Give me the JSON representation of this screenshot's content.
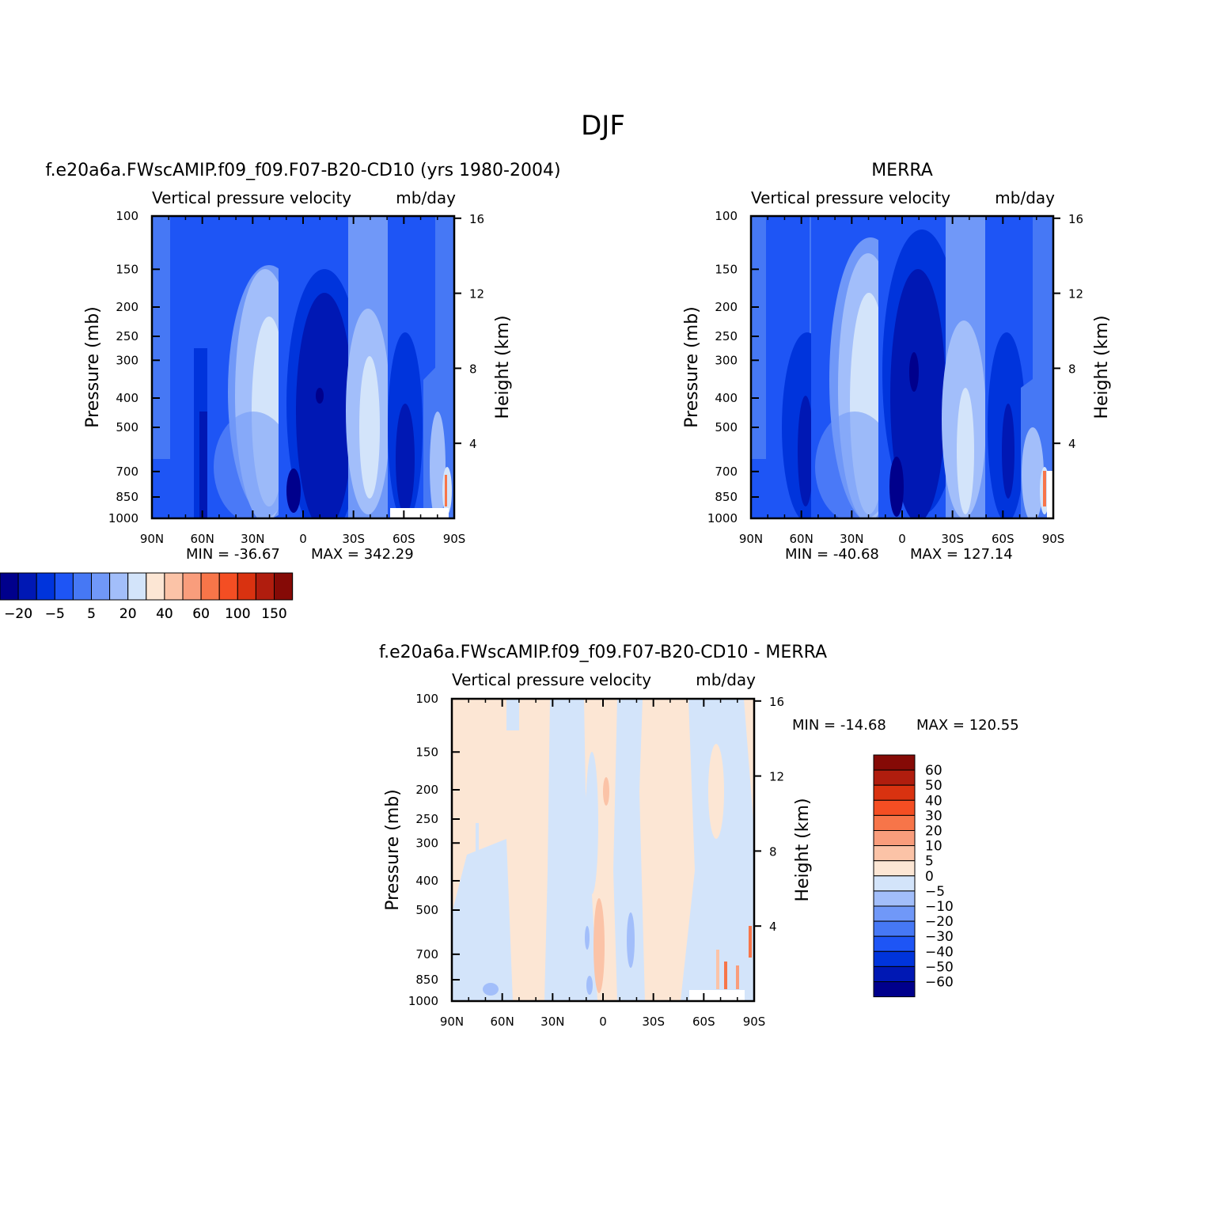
{
  "figure": {
    "title": "DJF"
  },
  "colors": {
    "abs_scale": [
      "#00008C",
      "#0018B4",
      "#0034DC",
      "#1E55F5",
      "#4678F5",
      "#7098F8",
      "#A2BEFA",
      "#D3E4FA",
      "#FCE6D4",
      "#FBC3A7",
      "#F99D7C",
      "#F77549",
      "#F44E23",
      "#D93210",
      "#B01D0E",
      "#850A06"
    ],
    "diff_scale": [
      "#00008C",
      "#0018B4",
      "#0034DC",
      "#1E55F5",
      "#4678F5",
      "#7098F8",
      "#A2BEFA",
      "#D3E4FA",
      "#FCE6D4",
      "#FBC3A7",
      "#F99D7C",
      "#F77549",
      "#F44E23",
      "#D93210",
      "#B01D0E",
      "#850A06"
    ]
  },
  "chart_data": [
    {
      "type": "contour",
      "id": "model",
      "title": "f.e20a6a.FWscAMIP.f09_f09.F07-B20-CD10 (yrs 1980-2004)",
      "subtitle_left": "Vertical pressure velocity",
      "subtitle_right": "mb/day",
      "ylabel": "Pressure (mb)",
      "y2label": "Height (km)",
      "x_ticks": [
        "90N",
        "60N",
        "30N",
        "0",
        "30S",
        "60S",
        "90S"
      ],
      "y_ticks": [
        100,
        150,
        200,
        250,
        300,
        400,
        500,
        700,
        850,
        1000
      ],
      "y2_ticks": [
        16,
        12,
        8,
        4
      ],
      "min_label": "MIN = -36.67",
      "max_label": "MAX = 342.29",
      "colorbar_labels": [
        "-20",
        "-5",
        "5",
        "20",
        "40",
        "60",
        "100",
        "150"
      ]
    },
    {
      "type": "contour",
      "id": "obs",
      "title": "MERRA",
      "subtitle_left": "Vertical pressure velocity",
      "subtitle_right": "mb/day",
      "ylabel": "Pressure (mb)",
      "y2label": "Height (km)",
      "x_ticks": [
        "90N",
        "60N",
        "30N",
        "0",
        "30S",
        "60S",
        "90S"
      ],
      "y_ticks": [
        100,
        150,
        200,
        250,
        300,
        400,
        500,
        700,
        850,
        1000
      ],
      "y2_ticks": [
        16,
        12,
        8,
        4
      ],
      "min_label": "MIN = -40.68",
      "max_label": "MAX = 127.14",
      "colorbar_labels": [
        "-20",
        "-5",
        "5",
        "20",
        "40",
        "60",
        "100",
        "150"
      ]
    },
    {
      "type": "contour",
      "id": "diff",
      "title": "f.e20a6a.FWscAMIP.f09_f09.F07-B20-CD10 - MERRA",
      "subtitle_left": "Vertical pressure velocity",
      "subtitle_right": "mb/day",
      "ylabel": "Pressure (mb)",
      "y2label": "Height (km)",
      "x_ticks": [
        "90N",
        "60N",
        "30N",
        "0",
        "30S",
        "60S",
        "90S"
      ],
      "y_ticks": [
        100,
        150,
        200,
        250,
        300,
        400,
        500,
        700,
        850,
        1000
      ],
      "y2_ticks": [
        16,
        12,
        8,
        4
      ],
      "min_label": "MIN = -14.68",
      "max_label": "MAX = 120.55",
      "colorbar_labels": [
        "60",
        "50",
        "40",
        "30",
        "20",
        "10",
        "5",
        "0",
        "-5",
        "-10",
        "-20",
        "-30",
        "-40",
        "-50",
        "-60"
      ]
    }
  ]
}
